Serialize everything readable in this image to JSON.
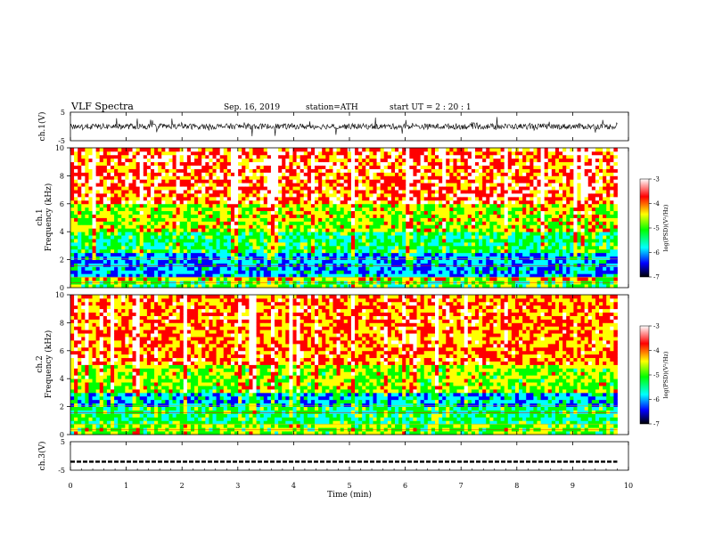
{
  "header": {
    "title": "VLF  Spectra",
    "date": "Sep. 16, 2019",
    "station": "station=ATH",
    "start_ut": "start  UT  =    2  : 20 : 1"
  },
  "chart_data": [
    {
      "type": "line",
      "name": "ch1-waveform",
      "ylabel": "ch.1(V)",
      "ylim": [
        -5,
        5
      ],
      "yticks": [
        "5",
        "-5"
      ],
      "xlim": [
        0,
        10
      ],
      "color": "#000000",
      "description_values": {
        "baseline_v": 0.0,
        "typical_amplitude_v": 1.0,
        "data_end_min": 9.8
      }
    },
    {
      "type": "heatmap",
      "name": "ch1-spectrogram",
      "channel_label": "ch.1",
      "ylabel": "Frequency  (kHz)",
      "ylim": [
        0,
        10
      ],
      "yticks": [
        "10",
        "8",
        "6",
        "4",
        "2",
        "0"
      ],
      "xlim": [
        0,
        10
      ],
      "data_end_min": 9.8,
      "colorbar": {
        "label": "log(PSD)(V²/Hz)",
        "range": [
          -7,
          -3
        ],
        "ticks": [
          "-3",
          "-4",
          "-5",
          "-6",
          "-7"
        ]
      },
      "bands_khz": [
        {
          "from": 0.0,
          "to": 0.4,
          "level": -5.0
        },
        {
          "from": 0.4,
          "to": 0.8,
          "level": -4.5
        },
        {
          "from": 0.8,
          "to": 2.5,
          "level": -5.8
        },
        {
          "from": 2.5,
          "to": 4.0,
          "level": -5.2
        },
        {
          "from": 4.0,
          "to": 6.0,
          "level": -4.6
        },
        {
          "from": 6.0,
          "to": 10.0,
          "level": -3.9
        }
      ]
    },
    {
      "type": "heatmap",
      "name": "ch2-spectrogram",
      "channel_label": "ch.2",
      "ylabel": "Frequency  (kHz)",
      "ylim": [
        0,
        10
      ],
      "yticks": [
        "10",
        "8",
        "6",
        "4",
        "2",
        "0"
      ],
      "xlim": [
        0,
        10
      ],
      "data_end_min": 9.8,
      "colorbar": {
        "label": "log(PSD)(V²/Hz)",
        "range": [
          -7,
          -3
        ],
        "ticks": [
          "-3",
          "-4",
          "-5",
          "-6",
          "-7"
        ]
      },
      "bands_khz": [
        {
          "from": 0.0,
          "to": 0.8,
          "level": -4.8
        },
        {
          "from": 0.8,
          "to": 2.0,
          "level": -5.2
        },
        {
          "from": 2.0,
          "to": 3.0,
          "level": -5.7
        },
        {
          "from": 3.0,
          "to": 5.0,
          "level": -4.7
        },
        {
          "from": 5.0,
          "to": 10.0,
          "level": -4.1
        }
      ]
    },
    {
      "type": "line",
      "name": "ch3-waveform",
      "ylabel": "ch.3(V)",
      "ylim": [
        -5,
        5
      ],
      "yticks": [
        "5",
        "-5"
      ],
      "xlim": [
        0,
        10
      ],
      "color": "#000000",
      "description_values": {
        "baseline_v": -2.0,
        "data_end_min": 9.8
      }
    }
  ],
  "xaxis": {
    "label": "Time  (min)",
    "ticks": [
      "0",
      "1",
      "2",
      "3",
      "4",
      "5",
      "6",
      "7",
      "8",
      "9",
      "10"
    ]
  },
  "colors": {
    "scale": [
      "#ffffff",
      "#ff0000",
      "#ffff00",
      "#00ff00",
      "#00ffff",
      "#0000ff",
      "#000000"
    ]
  }
}
